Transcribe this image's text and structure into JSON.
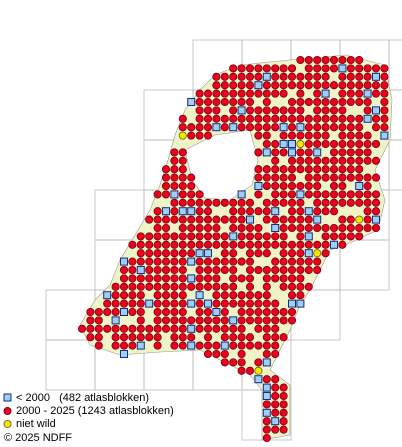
{
  "legend": {
    "items": [
      {
        "label": "< 2000   (482 atlasblokken)"
      },
      {
        "label": "2000 - 2025 (1243 atlasblokken)"
      },
      {
        "label": "niet wild"
      }
    ]
  },
  "credit": "© 2025 NDFF"
}
